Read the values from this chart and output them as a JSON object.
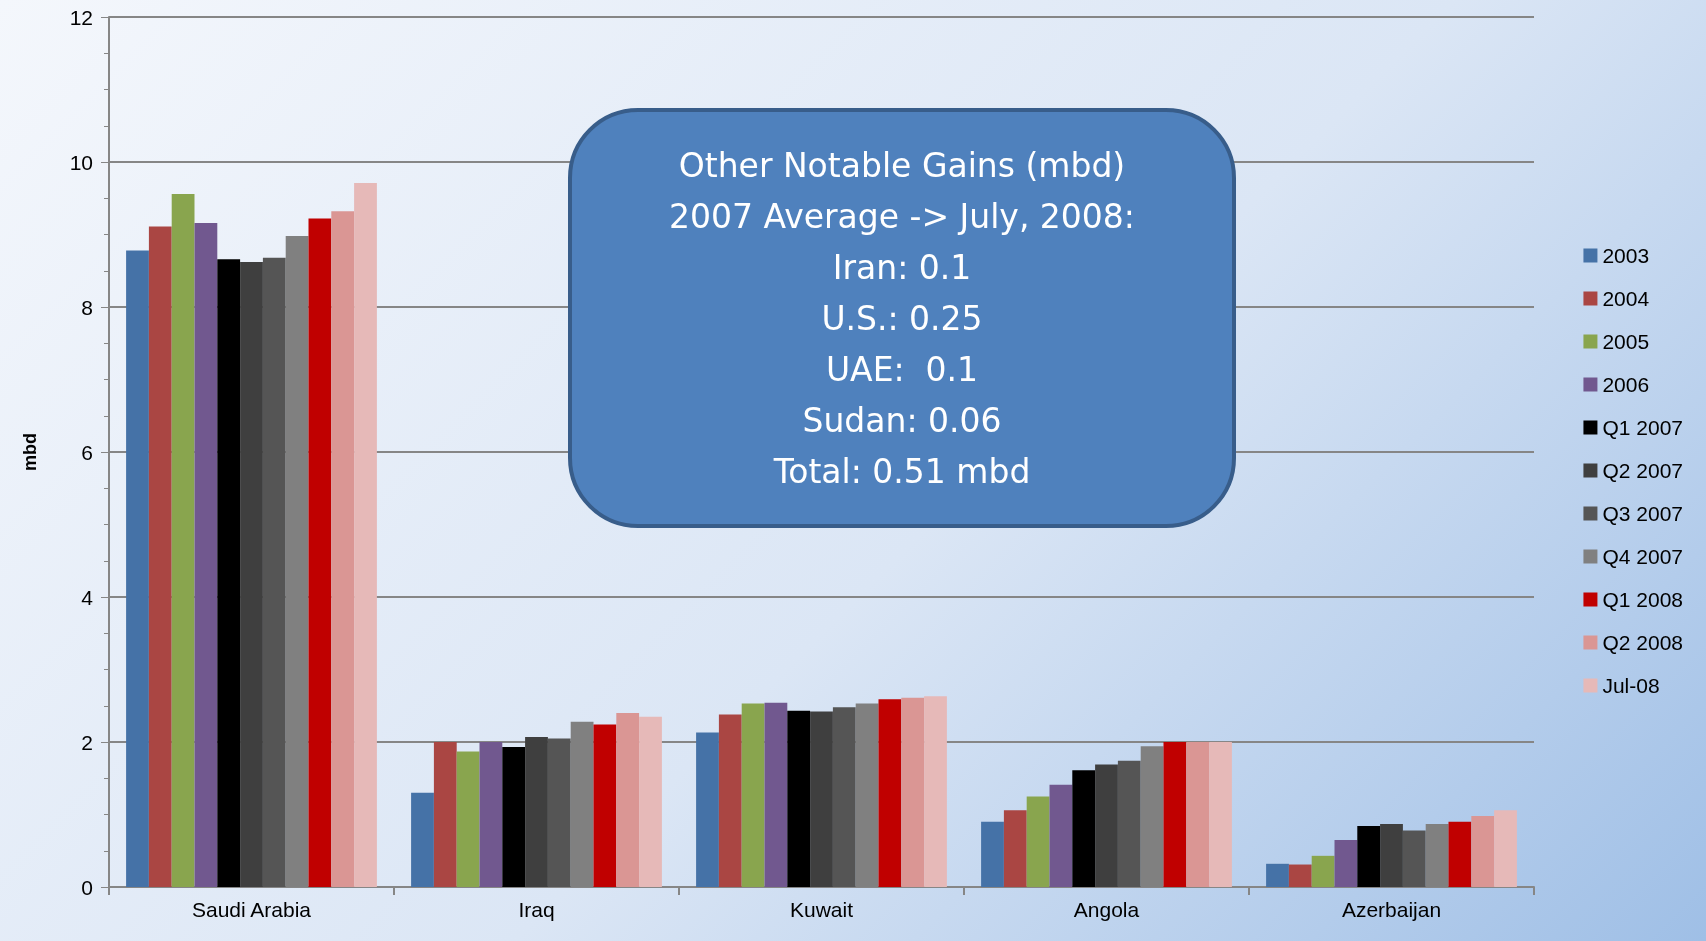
{
  "chart_data": {
    "type": "bar",
    "ylabel": "mbd",
    "categories": [
      "Saudi Arabia",
      "Iraq",
      "Kuwait",
      "Angola",
      "Azerbaijan"
    ],
    "series": [
      {
        "name": "2003",
        "color": "#4572a7",
        "values": [
          8.78,
          1.3,
          2.13,
          0.9,
          0.32
        ]
      },
      {
        "name": "2004",
        "color": "#aa4643",
        "values": [
          9.11,
          2.0,
          2.38,
          1.06,
          0.31
        ]
      },
      {
        "name": "2005",
        "color": "#89a54e",
        "values": [
          9.56,
          1.87,
          2.53,
          1.25,
          0.43
        ]
      },
      {
        "name": "2006",
        "color": "#71588f",
        "values": [
          9.16,
          2.0,
          2.54,
          1.41,
          0.65
        ]
      },
      {
        "name": "Q1 2007",
        "color": "#000000",
        "values": [
          8.66,
          1.93,
          2.43,
          1.61,
          0.84
        ]
      },
      {
        "name": "Q2 2007",
        "color": "#3f3f3f",
        "values": [
          8.62,
          2.07,
          2.42,
          1.69,
          0.87
        ]
      },
      {
        "name": "Q3 2007",
        "color": "#555555",
        "values": [
          8.68,
          2.05,
          2.48,
          1.74,
          0.78
        ]
      },
      {
        "name": "Q4 2007",
        "color": "#808080",
        "values": [
          8.98,
          2.28,
          2.53,
          1.94,
          0.87
        ]
      },
      {
        "name": "Q1 2008",
        "color": "#c00000",
        "values": [
          9.22,
          2.24,
          2.59,
          2.0,
          0.9
        ]
      },
      {
        "name": "Q2 2008",
        "color": "#da9694",
        "values": [
          9.32,
          2.4,
          2.61,
          2.0,
          0.98
        ]
      },
      {
        "name": "Jul-08",
        "color": "#e6b9b8",
        "values": [
          9.71,
          2.35,
          2.63,
          2.0,
          1.06
        ]
      }
    ],
    "ylim": [
      0,
      12
    ],
    "yticks": [
      0,
      2,
      4,
      6,
      8,
      10,
      12
    ],
    "grid": "y",
    "legend": "right",
    "annotations": [
      "Other Notable Gains (mbd)",
      "2007 Average -> July, 2008:",
      "Iran: 0.1",
      "U.S.: 0.25",
      "UAE:  0.1",
      "Sudan: 0.06",
      "Total: 0.51 mbd"
    ]
  }
}
